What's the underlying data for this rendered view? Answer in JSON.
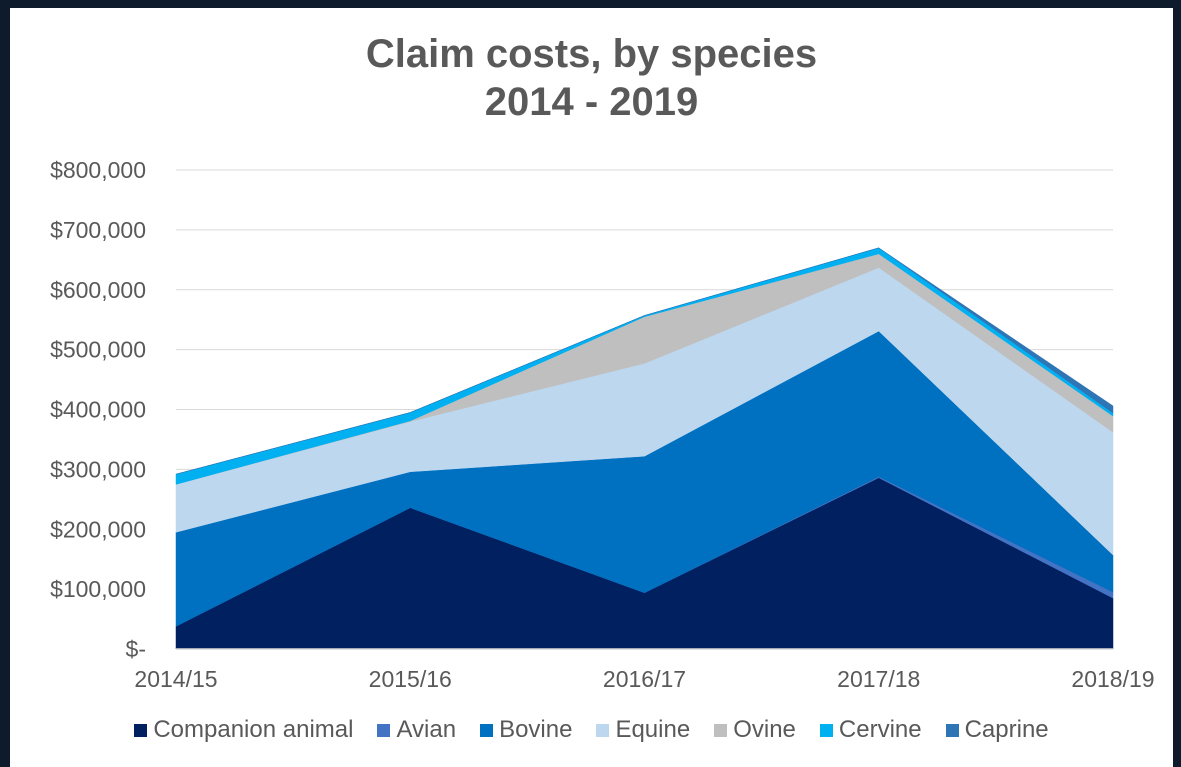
{
  "chart_data": {
    "type": "area",
    "stacked": true,
    "title": "Claim costs, by species",
    "subtitle": "2014 - 2019",
    "xlabel": "",
    "ylabel": "",
    "categories": [
      "2014/15",
      "2015/16",
      "2016/17",
      "2017/18",
      "2018/19"
    ],
    "ylim": [
      0,
      800000
    ],
    "y_ticks": [
      0,
      100000,
      200000,
      300000,
      400000,
      500000,
      600000,
      700000,
      800000
    ],
    "y_tick_labels": [
      "$-",
      "$100,000",
      "$200,000",
      "$300,000",
      "$400,000",
      "$500,000",
      "$600,000",
      "$700,000",
      "$800,000"
    ],
    "grid": true,
    "legend_position": "bottom",
    "series": [
      {
        "name": "Companion animal",
        "color": "#002060",
        "values": [
          38000,
          236000,
          94000,
          286000,
          85000
        ]
      },
      {
        "name": "Avian",
        "color": "#4472c4",
        "values": [
          0,
          0,
          0,
          2000,
          10000
        ]
      },
      {
        "name": "Bovine",
        "color": "#0070c0",
        "values": [
          157000,
          60000,
          228000,
          243000,
          62000
        ]
      },
      {
        "name": "Equine",
        "color": "#bdd7ee",
        "values": [
          80000,
          84000,
          155000,
          106000,
          205000
        ]
      },
      {
        "name": "Ovine",
        "color": "#bfbfbf",
        "values": [
          0,
          1000,
          78000,
          23000,
          27000
        ]
      },
      {
        "name": "Cervine",
        "color": "#00b0f0",
        "values": [
          17000,
          14000,
          2000,
          10000,
          5000
        ]
      },
      {
        "name": "Caprine",
        "color": "#2e75b6",
        "values": [
          0,
          0,
          0,
          0,
          12000
        ]
      }
    ]
  }
}
